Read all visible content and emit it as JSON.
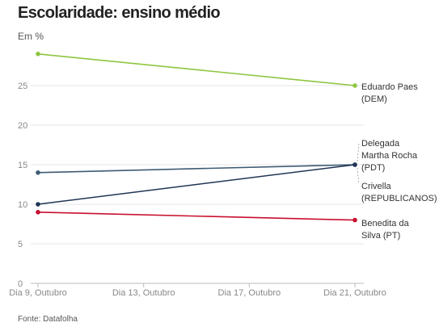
{
  "chart_data": {
    "type": "line",
    "title": "Escolaridade: ensino médio",
    "subtitle": "Em %",
    "source": "Fonte: Datafolha",
    "x": [
      "Dia 9, Outubro",
      "Dia 21, Outubro"
    ],
    "x_ticks": [
      "Dia 9, Outubro",
      "Dia 13, Outubro",
      "Dia 17, Outubro",
      "Dia 21, Outubro"
    ],
    "y_ticks": [
      0,
      5,
      10,
      15,
      20,
      25
    ],
    "ylim": [
      0,
      30
    ],
    "grid": true,
    "series": [
      {
        "name": "Eduardo Paes (DEM)",
        "label_lines": [
          "Eduardo Paes",
          "(DEM)"
        ],
        "values": [
          29,
          25
        ],
        "color": "#8dc63f"
      },
      {
        "name": "Delegada Martha Rocha (PDT)",
        "label_lines": [
          "Delegada",
          "Martha Rocha",
          "(PDT)"
        ],
        "values": [
          14,
          15
        ],
        "color": "#3d5a73"
      },
      {
        "name": "Crivella (REPUBLICANOS)",
        "label_lines": [
          "Crivella",
          "(REPUBLICANOS)"
        ],
        "values": [
          10,
          15
        ],
        "color": "#1f3554"
      },
      {
        "name": "Benedita da Silva (PT)",
        "label_lines": [
          "Benedita da",
          "Silva (PT)"
        ],
        "values": [
          9,
          8
        ],
        "color": "#c8102e"
      }
    ]
  }
}
